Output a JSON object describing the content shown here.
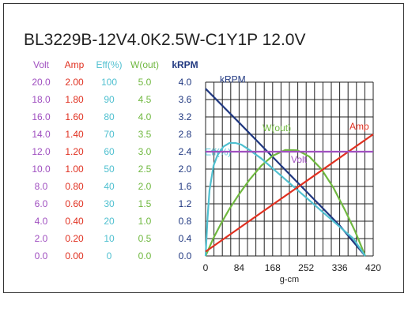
{
  "chart_data": {
    "type": "line",
    "title": "BL3229B-12V4.0K2.5W-C1Y1P   12.0V",
    "xlabel": "g-cm",
    "xlim": [
      0,
      420
    ],
    "x_ticks": [
      "0",
      "84",
      "168",
      "252",
      "336",
      "420"
    ],
    "grid": true,
    "colors": {
      "volt": "#a050c0",
      "amp": "#e03020",
      "eff": "#50c0d0",
      "wout": "#70b840",
      "krpm": "#203880"
    },
    "axes": [
      {
        "key": "volt",
        "label": "Volt",
        "ticks": [
          "0.0",
          "2.0",
          "4.0",
          "6.0",
          "8.0",
          "10.0",
          "12.0",
          "14.0",
          "16.0",
          "18.0",
          "20.0"
        ]
      },
      {
        "key": "amp",
        "label": "Amp",
        "ticks": [
          "0.00",
          "0.20",
          "0.40",
          "0.60",
          "0.80",
          "1.00",
          "1.20",
          "1.40",
          "1.60",
          "1.80",
          "2.00"
        ]
      },
      {
        "key": "eff",
        "label": "Eff(%)",
        "ticks": [
          "0",
          "10",
          "20",
          "30",
          "40",
          "50",
          "60",
          "70",
          "80",
          "90",
          "100"
        ]
      },
      {
        "key": "wout",
        "label": "W(out)",
        "ticks": [
          "0.0",
          "0.5",
          "1.0",
          "1.5",
          "2.0",
          "2.5",
          "3.0",
          "3.5",
          "4.0",
          "4.5",
          "5.0"
        ]
      },
      {
        "key": "krpm",
        "label": "kRPM",
        "ticks": [
          "0.0",
          "0.4",
          "0.8",
          "1.2",
          "1.6",
          "2.0",
          "2.4",
          "2.8",
          "3.2",
          "3.6",
          "4.0"
        ]
      }
    ],
    "series": [
      {
        "key": "krpm",
        "name": "kRPM",
        "axis_max": 4.0,
        "x": [
          0,
          84,
          168,
          252,
          336,
          400
        ],
        "y": [
          3.85,
          3.07,
          2.28,
          1.49,
          0.7,
          0.0
        ]
      },
      {
        "key": "wout",
        "name": "W(out)",
        "axis_max": 5.0,
        "x": [
          0,
          20,
          40,
          60,
          84,
          110,
          140,
          168,
          200,
          230,
          260,
          290,
          320,
          350,
          375,
          400
        ],
        "y": [
          0.0,
          0.52,
          0.96,
          1.36,
          1.78,
          2.19,
          2.6,
          2.88,
          3.05,
          3.04,
          2.86,
          2.5,
          1.97,
          1.3,
          0.7,
          0.0
        ]
      },
      {
        "key": "eff",
        "name": "Eff(%)",
        "axis_max": 100,
        "x": [
          0,
          5,
          10,
          20,
          30,
          45,
          60,
          75,
          90,
          110,
          140,
          180,
          230,
          280,
          330,
          370,
          400
        ],
        "y": [
          0,
          22,
          38,
          52,
          58,
          63,
          65,
          65,
          64,
          61,
          56,
          48,
          38,
          28,
          18,
          10,
          0
        ]
      },
      {
        "key": "amp",
        "name": "Amp",
        "axis_max": 2.0,
        "x": [
          0,
          420
        ],
        "y": [
          0.05,
          1.4
        ]
      },
      {
        "key": "volt",
        "name": "Volt",
        "axis_max": 20.0,
        "x": [
          0,
          420
        ],
        "y": [
          12.0,
          12.0
        ]
      }
    ]
  }
}
